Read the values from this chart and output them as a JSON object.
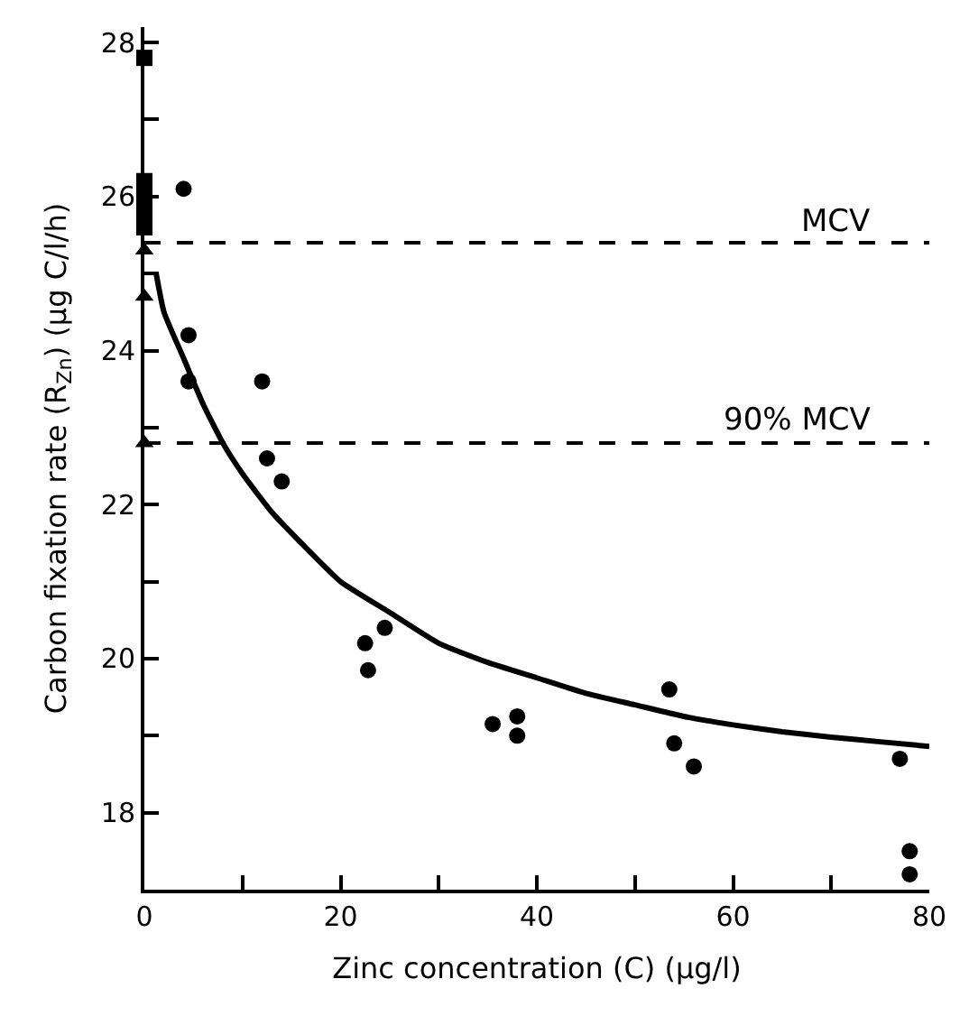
{
  "chart_data": {
    "type": "scatter",
    "xlabel": "Zinc concentration (C) (µg/l)",
    "ylabel": "Carbon fixation rate (R$_{Zn}$) (µg C/l/h)",
    "xlim": [
      0,
      80
    ],
    "xticks": [
      0,
      {
        "value": 10,
        "label": null
      },
      20,
      {
        "value": 30,
        "label": null
      },
      40,
      {
        "value": 50,
        "label": null
      },
      60,
      {
        "value": 70,
        "label": null
      },
      80
    ],
    "ylim": [
      17,
      28.2
    ],
    "yticks": [
      {
        "value": 17,
        "label": null
      },
      18,
      {
        "value": 19,
        "label": null
      },
      20,
      {
        "value": 21,
        "label": null
      },
      22,
      {
        "value": 23,
        "label": null
      },
      24,
      {
        "value": 25,
        "label": null
      },
      26,
      {
        "value": 27,
        "label": null
      },
      28
    ],
    "series": [
      {
        "marker": "square",
        "color": "#000000",
        "x": [
          0,
          0,
          0,
          0,
          0
        ],
        "values": [
          27.8,
          26.2,
          26.0,
          25.8,
          25.6
        ]
      },
      {
        "marker": "triangle",
        "color": "#000000",
        "x": [
          0,
          0,
          0
        ],
        "values": [
          25.3,
          24.7,
          22.8
        ]
      },
      {
        "marker": "circle",
        "color": "#000000",
        "x": [
          4,
          4.5,
          4.5,
          12,
          12.5,
          14,
          22.5,
          22.8,
          24.5,
          35.5,
          38,
          38,
          53.5,
          54,
          56,
          77,
          78,
          78
        ],
        "values": [
          26.1,
          24.2,
          23.6,
          23.6,
          22.6,
          22.3,
          20.2,
          19.85,
          20.4,
          19.15,
          19.25,
          19.0,
          19.6,
          18.9,
          18.6,
          18.7,
          17.5,
          17.2
        ]
      },
      {
        "type": "line",
        "line_style": "solid",
        "marker": "none",
        "color": "#000000",
        "x": [
          1.2,
          2,
          4,
          6,
          8,
          10,
          13,
          16,
          20,
          25,
          30,
          35,
          40,
          45,
          50,
          55,
          60,
          65,
          70,
          75,
          80
        ],
        "values": [
          25.0,
          24.5,
          23.9,
          23.3,
          22.8,
          22.4,
          21.9,
          21.5,
          21.0,
          20.6,
          20.2,
          19.95,
          19.75,
          19.55,
          19.4,
          19.25,
          19.14,
          19.05,
          18.98,
          18.92,
          18.86
        ]
      }
    ],
    "ref_lines": [
      {
        "axis": "y",
        "value": 25.4,
        "label": "MCV",
        "color": "#000000",
        "line_style": "dashed"
      },
      {
        "axis": "y",
        "value": 22.8,
        "label": "90% MCV",
        "color": "#000000",
        "line_style": "dashed"
      }
    ]
  }
}
